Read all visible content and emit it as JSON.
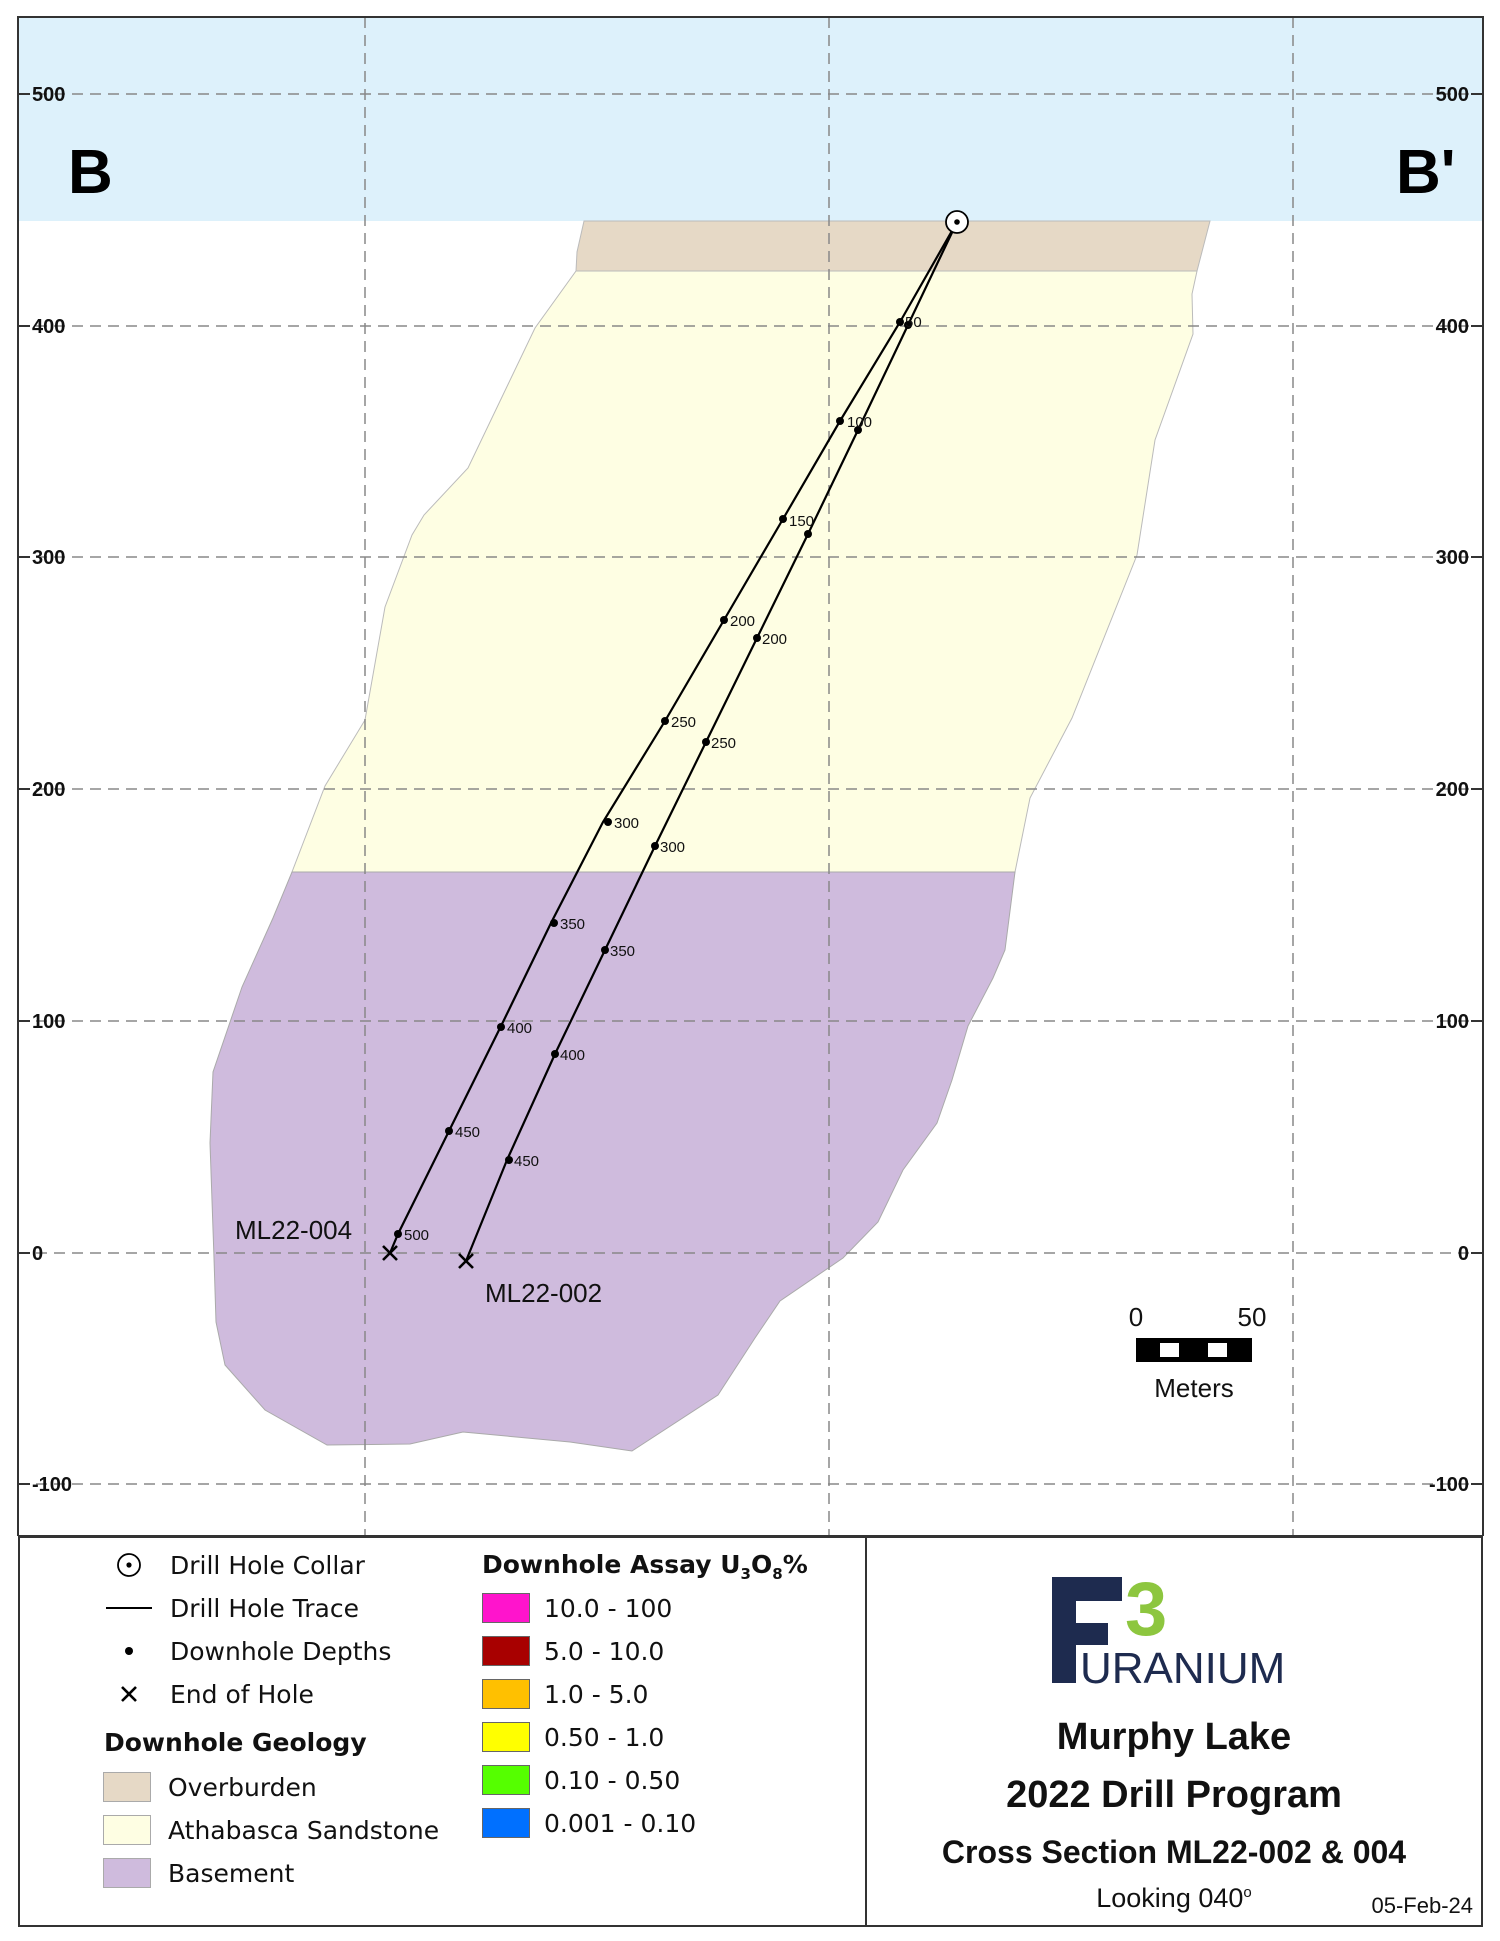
{
  "section": {
    "left_label": "B",
    "right_label": "B'",
    "elevation_ticks": [
      "500",
      "400",
      "300",
      "200",
      "100",
      "0",
      "-100"
    ]
  },
  "holes": [
    {
      "name": "ML22-004",
      "depths": [
        {
          "label": "50"
        },
        {
          "label": "100"
        },
        {
          "label": "150"
        },
        {
          "label": "200"
        },
        {
          "label": "250"
        },
        {
          "label": "300"
        },
        {
          "label": "350"
        },
        {
          "label": "400"
        },
        {
          "label": "450"
        },
        {
          "label": "500"
        }
      ]
    },
    {
      "name": "ML22-002",
      "depths": [
        {
          "label": "200"
        },
        {
          "label": "250"
        },
        {
          "label": "300"
        },
        {
          "label": "350"
        },
        {
          "label": "400"
        },
        {
          "label": "450"
        }
      ]
    }
  ],
  "scale_bar": {
    "start": "0",
    "end": "50",
    "unit": "Meters"
  },
  "legend": {
    "collar": "Drill Hole Collar",
    "trace": "Drill Hole Trace",
    "depths": "Downhole Depths",
    "end": "End of Hole",
    "geology_title": "Downhole Geology",
    "geology": [
      {
        "label": "Overburden",
        "color": "#E6D9C6"
      },
      {
        "label": "Athabasca Sandstone",
        "color": "#FEFEE3"
      },
      {
        "label": "Basement",
        "color": "#CFBBDD"
      }
    ],
    "assay_title_pre": "Downhole Assay U",
    "assay_sub1": "3",
    "assay_mid": "O",
    "assay_sub2": "8",
    "assay_post": "%",
    "assay": [
      {
        "label": "10.0 - 100",
        "color": "#FF14CC"
      },
      {
        "label": "5.0 - 10.0",
        "color": "#A80000"
      },
      {
        "label": "1.0 - 5.0",
        "color": "#FFC000"
      },
      {
        "label": "0.50 - 1.0",
        "color": "#FFFF00"
      },
      {
        "label": "0.10 - 0.50",
        "color": "#55FF00"
      },
      {
        "label": "0.001 - 0.10",
        "color": "#0070FF"
      }
    ]
  },
  "logo": {
    "mark": "F",
    "superscript": "3",
    "word": "URANIUM",
    "navy": "#1E2B4F",
    "green": "#8DC63F"
  },
  "title_block": {
    "project": "Murphy Lake",
    "program": "2022 Drill Program",
    "section": "Cross Section ML22-002 & 004",
    "looking": "Looking 040",
    "degree": "o",
    "date": "05-Feb-24"
  },
  "colors": {
    "sky": "#DDF1FB",
    "overburden": "#E6D9C6",
    "sandstone": "#FEFEE3",
    "basement": "#CFBBDD"
  }
}
